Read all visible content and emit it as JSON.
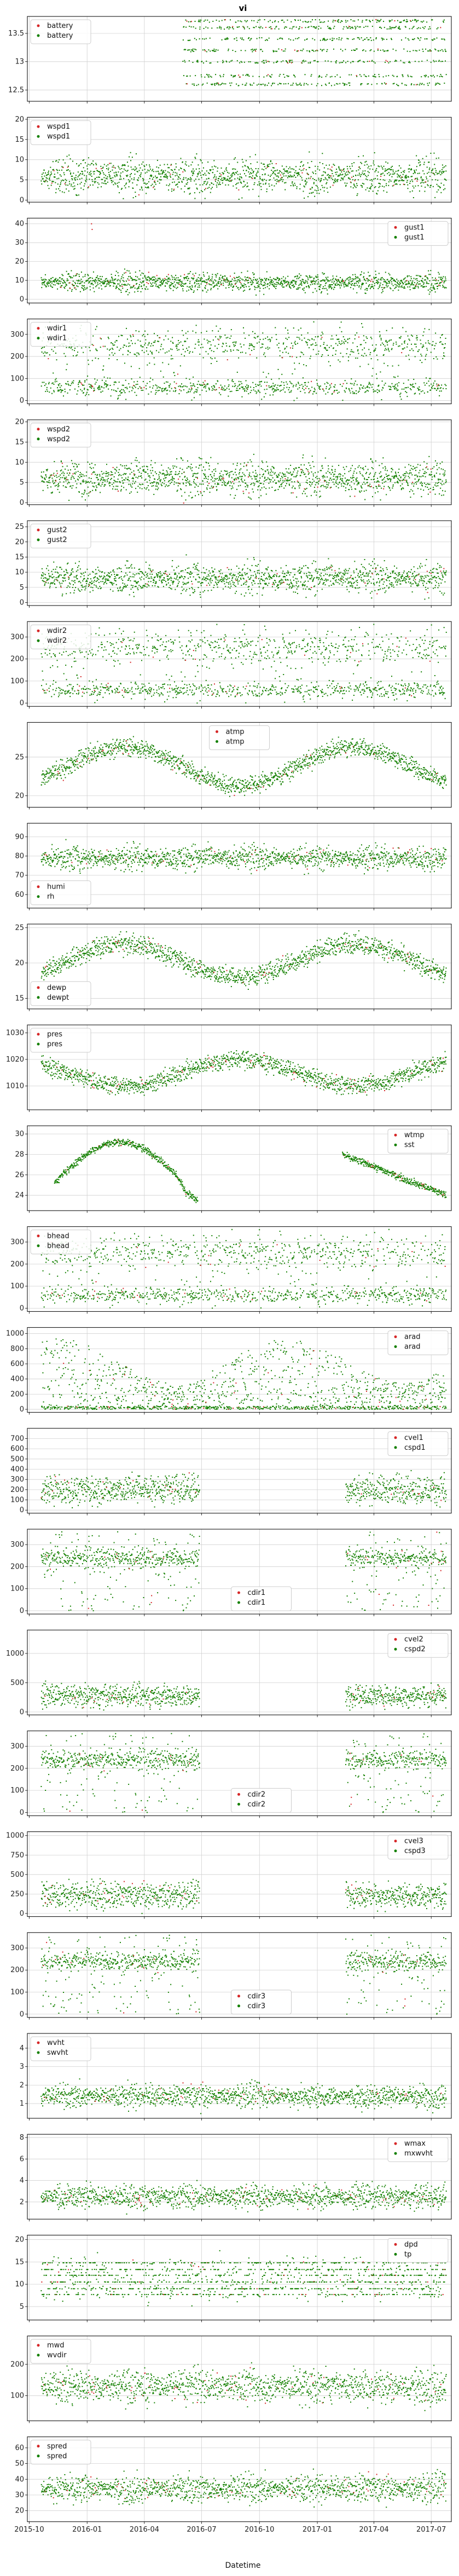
{
  "figure": {
    "title": "vi",
    "xlabel": "Datetime",
    "x_ticks": [
      "2015-10",
      "2016-01",
      "2016-04",
      "2016-07",
      "2016-10",
      "2017-01",
      "2017-04",
      "2017-07"
    ]
  },
  "colors": {
    "raw": "#d62728",
    "qc": "#138000"
  },
  "chart_data": [
    {
      "type": "scatter",
      "series": [
        {
          "name": "battery",
          "color": "#d62728"
        },
        {
          "name": "battery",
          "color": "#138000"
        }
      ],
      "ylim": [
        12.3,
        13.8
      ],
      "yticks": [
        12.5,
        13.0,
        13.5
      ],
      "legend": "upper-left",
      "data_spans": [
        [
          "2016-06-01",
          "2017-07-25"
        ]
      ],
      "pattern": "bands",
      "bands": [
        12.6,
        12.75,
        13.0,
        13.2,
        13.4,
        13.6,
        13.72
      ],
      "grid": true
    },
    {
      "type": "scatter",
      "series": [
        {
          "name": "wspd1",
          "color": "#d62728"
        },
        {
          "name": "wspd1",
          "color": "#138000"
        }
      ],
      "ylim": [
        -0.5,
        20.5
      ],
      "yticks": [
        0,
        5,
        10,
        15,
        20
      ],
      "legend": "upper-left",
      "data_spans": [
        [
          "2015-10-20",
          "2017-07-25"
        ]
      ],
      "pattern": "noise",
      "mean": 6,
      "spread": 3.5,
      "grid": true
    },
    {
      "type": "scatter",
      "series": [
        {
          "name": "gust1",
          "color": "#d62728"
        },
        {
          "name": "gust1",
          "color": "#138000"
        }
      ],
      "ylim": [
        -2,
        43
      ],
      "yticks": [
        0,
        10,
        20,
        30,
        40
      ],
      "legend": "upper-right",
      "data_spans": [
        [
          "2015-10-20",
          "2017-07-25"
        ]
      ],
      "pattern": "noise",
      "mean": 9,
      "spread": 4,
      "outliers": [
        [
          "2016-01-08",
          40
        ],
        [
          "2016-01-09",
          37
        ]
      ],
      "grid": true
    },
    {
      "type": "scatter",
      "series": [
        {
          "name": "wdir1",
          "color": "#d62728"
        },
        {
          "name": "wdir1",
          "color": "#138000"
        }
      ],
      "ylim": [
        -15,
        370
      ],
      "yticks": [
        0,
        100,
        200,
        300
      ],
      "legend": "upper-left",
      "data_spans": [
        [
          "2015-10-20",
          "2017-07-25"
        ]
      ],
      "pattern": "direction",
      "grid": true
    },
    {
      "type": "scatter",
      "series": [
        {
          "name": "wspd2",
          "color": "#d62728"
        },
        {
          "name": "wspd2",
          "color": "#138000"
        }
      ],
      "ylim": [
        -0.5,
        20.5
      ],
      "yticks": [
        0,
        5,
        10,
        15,
        20
      ],
      "legend": "upper-left",
      "data_spans": [
        [
          "2015-10-20",
          "2017-07-25"
        ]
      ],
      "pattern": "noise",
      "mean": 6,
      "spread": 3.5,
      "grid": true
    },
    {
      "type": "scatter",
      "series": [
        {
          "name": "gust2",
          "color": "#d62728"
        },
        {
          "name": "gust2",
          "color": "#138000"
        }
      ],
      "ylim": [
        -1,
        27
      ],
      "yticks": [
        0,
        5,
        10,
        15,
        20,
        25
      ],
      "legend": "upper-left",
      "data_spans": [
        [
          "2015-10-20",
          "2017-07-25"
        ]
      ],
      "pattern": "noise",
      "mean": 8,
      "spread": 4,
      "grid": true
    },
    {
      "type": "scatter",
      "series": [
        {
          "name": "wdir2",
          "color": "#d62728"
        },
        {
          "name": "wdir2",
          "color": "#138000"
        }
      ],
      "ylim": [
        -15,
        370
      ],
      "yticks": [
        0,
        100,
        200,
        300
      ],
      "legend": "upper-left",
      "data_spans": [
        [
          "2015-10-20",
          "2017-07-25"
        ]
      ],
      "pattern": "direction",
      "grid": true
    },
    {
      "type": "scatter",
      "series": [
        {
          "name": "atmp",
          "color": "#d62728"
        },
        {
          "name": "atmp",
          "color": "#138000"
        }
      ],
      "ylim": [
        18.5,
        29.5
      ],
      "yticks": [
        20,
        25
      ],
      "legend": "upper-center",
      "data_spans": [
        [
          "2015-10-20",
          "2017-07-25"
        ]
      ],
      "pattern": "seasonal",
      "mean": 23.8,
      "amp": 2.5,
      "peak": "2016-03-01",
      "spread": 1.0,
      "grid": true
    },
    {
      "type": "scatter",
      "series": [
        {
          "name": "humi",
          "color": "#d62728"
        },
        {
          "name": "rh",
          "color": "#138000"
        }
      ],
      "ylim": [
        53,
        97
      ],
      "yticks": [
        60,
        70,
        80,
        90
      ],
      "legend": "lower-left",
      "data_spans": [
        [
          "2015-10-20",
          "2017-07-25"
        ]
      ],
      "pattern": "noise",
      "mean": 79,
      "spread": 5,
      "grid": true
    },
    {
      "type": "scatter",
      "series": [
        {
          "name": "dewp",
          "color": "#d62728"
        },
        {
          "name": "dewpt",
          "color": "#138000"
        }
      ],
      "ylim": [
        13.5,
        25.5
      ],
      "yticks": [
        15,
        20,
        25
      ],
      "legend": "lower-left",
      "data_spans": [
        [
          "2015-10-20",
          "2017-07-25"
        ]
      ],
      "pattern": "seasonal",
      "mean": 20.3,
      "amp": 2.4,
      "peak": "2016-03-01",
      "spread": 1.2,
      "grid": true
    },
    {
      "type": "scatter",
      "series": [
        {
          "name": "pres",
          "color": "#d62728"
        },
        {
          "name": "pres",
          "color": "#138000"
        }
      ],
      "ylim": [
        1001,
        1033
      ],
      "yticks": [
        1010,
        1020,
        1030
      ],
      "legend": "upper-left",
      "data_spans": [
        [
          "2015-10-20",
          "2017-07-25"
        ]
      ],
      "pattern": "seasonal",
      "mean": 1015,
      "amp": -5,
      "peak": "2016-03-01",
      "spread": 3,
      "grid": true
    },
    {
      "type": "scatter",
      "series": [
        {
          "name": "wtmp",
          "color": "#d62728"
        },
        {
          "name": "sst",
          "color": "#138000"
        }
      ],
      "ylim": [
        22.5,
        30.8
      ],
      "yticks": [
        24,
        26,
        28,
        30
      ],
      "legend": "upper-right",
      "data_spans": [
        [
          "2015-11-10",
          "2016-06-25"
        ],
        [
          "2017-02-10",
          "2017-07-25"
        ]
      ],
      "pattern": "segments",
      "grid": true
    },
    {
      "type": "scatter",
      "series": [
        {
          "name": "bhead",
          "color": "#d62728"
        },
        {
          "name": "bhead",
          "color": "#138000"
        }
      ],
      "ylim": [
        -15,
        370
      ],
      "yticks": [
        0,
        100,
        200,
        300
      ],
      "legend": "upper-left",
      "data_spans": [
        [
          "2015-10-20",
          "2017-07-25"
        ]
      ],
      "pattern": "direction",
      "grid": true
    },
    {
      "type": "scatter",
      "series": [
        {
          "name": "arad",
          "color": "#d62728"
        },
        {
          "name": "arad",
          "color": "#138000"
        }
      ],
      "ylim": [
        -40,
        1080
      ],
      "yticks": [
        0,
        200,
        400,
        600,
        800,
        1000
      ],
      "legend": "upper-right",
      "data_spans": [
        [
          "2015-10-20",
          "2017-07-25"
        ]
      ],
      "pattern": "radiation",
      "grid": true
    },
    {
      "type": "scatter",
      "series": [
        {
          "name": "cvel1",
          "color": "#d62728"
        },
        {
          "name": "cspd1",
          "color": "#138000"
        }
      ],
      "ylim": [
        -30,
        800
      ],
      "yticks": [
        0,
        100,
        200,
        300,
        400,
        500,
        600,
        700
      ],
      "legend": "upper-right",
      "data_spans": [
        [
          "2015-10-20",
          "2016-06-28"
        ],
        [
          "2017-02-15",
          "2017-07-25"
        ]
      ],
      "pattern": "current",
      "mean": 200,
      "spread": 120,
      "grid": true
    },
    {
      "type": "scatter",
      "series": [
        {
          "name": "cdir1",
          "color": "#d62728"
        },
        {
          "name": "cdir1",
          "color": "#138000"
        }
      ],
      "ylim": [
        -15,
        370
      ],
      "yticks": [
        0,
        100,
        200,
        300
      ],
      "legend": "lower-center",
      "data_spans": [
        [
          "2015-10-20",
          "2016-06-28"
        ],
        [
          "2017-02-15",
          "2017-07-25"
        ]
      ],
      "pattern": "cdir",
      "grid": true
    },
    {
      "type": "scatter",
      "series": [
        {
          "name": "cvel2",
          "color": "#d62728"
        },
        {
          "name": "cspd2",
          "color": "#138000"
        }
      ],
      "ylim": [
        -50,
        1400
      ],
      "yticks": [
        0,
        500,
        1000
      ],
      "legend": "upper-right",
      "data_spans": [
        [
          "2015-10-20",
          "2016-06-28"
        ],
        [
          "2017-02-15",
          "2017-07-25"
        ]
      ],
      "pattern": "current",
      "mean": 280,
      "spread": 160,
      "grid": true
    },
    {
      "type": "scatter",
      "series": [
        {
          "name": "cdir2",
          "color": "#d62728"
        },
        {
          "name": "cdir2",
          "color": "#138000"
        }
      ],
      "ylim": [
        -15,
        370
      ],
      "yticks": [
        0,
        100,
        200,
        300
      ],
      "legend": "lower-center",
      "data_spans": [
        [
          "2015-10-20",
          "2016-06-28"
        ],
        [
          "2017-02-15",
          "2017-07-25"
        ]
      ],
      "pattern": "cdir",
      "grid": true
    },
    {
      "type": "scatter",
      "series": [
        {
          "name": "cvel3",
          "color": "#d62728"
        },
        {
          "name": "cspd3",
          "color": "#138000"
        }
      ],
      "ylim": [
        -40,
        1050
      ],
      "yticks": [
        0,
        250,
        500,
        750,
        1000
      ],
      "legend": "upper-right",
      "data_spans": [
        [
          "2015-10-20",
          "2016-06-28"
        ],
        [
          "2017-02-15",
          "2017-07-25"
        ]
      ],
      "pattern": "current",
      "mean": 230,
      "spread": 140,
      "grid": true
    },
    {
      "type": "scatter",
      "series": [
        {
          "name": "cdir3",
          "color": "#d62728"
        },
        {
          "name": "cdir3",
          "color": "#138000"
        }
      ],
      "ylim": [
        -15,
        370
      ],
      "yticks": [
        0,
        100,
        200,
        300
      ],
      "legend": "lower-center",
      "data_spans": [
        [
          "2015-10-20",
          "2016-06-28"
        ],
        [
          "2017-02-15",
          "2017-07-25"
        ]
      ],
      "pattern": "cdir",
      "grid": true
    },
    {
      "type": "scatter",
      "series": [
        {
          "name": "wvht",
          "color": "#d62728"
        },
        {
          "name": "swvht",
          "color": "#138000"
        }
      ],
      "ylim": [
        0.2,
        4.8
      ],
      "yticks": [
        1,
        2,
        3,
        4
      ],
      "legend": "upper-left",
      "data_spans": [
        [
          "2015-10-20",
          "2017-07-25"
        ]
      ],
      "pattern": "noise",
      "mean": 1.4,
      "spread": 0.5,
      "grid": true
    },
    {
      "type": "scatter",
      "series": [
        {
          "name": "wmax",
          "color": "#d62728"
        },
        {
          "name": "mxwvht",
          "color": "#138000"
        }
      ],
      "ylim": [
        0.4,
        8.3
      ],
      "yticks": [
        2,
        4,
        6,
        8
      ],
      "legend": "upper-right",
      "data_spans": [
        [
          "2015-10-20",
          "2017-07-25"
        ]
      ],
      "pattern": "noise",
      "mean": 2.5,
      "spread": 0.9,
      "grid": true
    },
    {
      "type": "scatter",
      "series": [
        {
          "name": "dpd",
          "color": "#d62728"
        },
        {
          "name": "tp",
          "color": "#138000"
        }
      ],
      "ylim": [
        2,
        21
      ],
      "yticks": [
        5,
        10,
        15,
        20
      ],
      "legend": "upper-right",
      "data_spans": [
        [
          "2015-10-20",
          "2017-07-25"
        ]
      ],
      "pattern": "period",
      "grid": true
    },
    {
      "type": "scatter",
      "series": [
        {
          "name": "mwd",
          "color": "#d62728"
        },
        {
          "name": "wvdir",
          "color": "#138000"
        }
      ],
      "ylim": [
        20,
        290
      ],
      "yticks": [
        100,
        200
      ],
      "legend": "upper-left",
      "data_spans": [
        [
          "2015-10-20",
          "2017-07-25"
        ]
      ],
      "pattern": "noise",
      "mean": 130,
      "spread": 45,
      "grid": true
    },
    {
      "type": "scatter",
      "series": [
        {
          "name": "spred",
          "color": "#d62728"
        },
        {
          "name": "spred",
          "color": "#138000"
        }
      ],
      "ylim": [
        13,
        67
      ],
      "yticks": [
        20,
        30,
        40,
        50,
        60
      ],
      "legend": "upper-left",
      "data_spans": [
        [
          "2015-10-20",
          "2017-07-25"
        ]
      ],
      "pattern": "noise",
      "mean": 34,
      "spread": 7,
      "grid": true
    }
  ]
}
